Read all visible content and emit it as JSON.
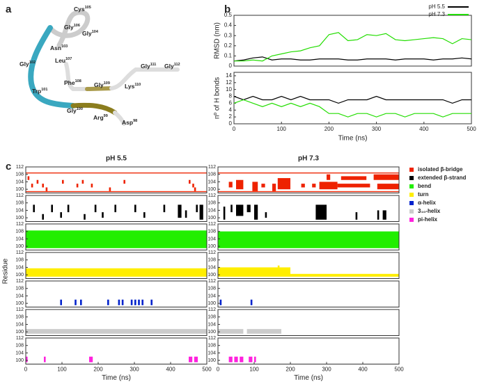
{
  "panel_labels": [
    "a",
    "b",
    "c"
  ],
  "structure": {
    "labels": [
      {
        "name": "Cys",
        "number": 105
      },
      {
        "name": "Gly",
        "number": 106
      },
      {
        "name": "Gly",
        "number": 104
      },
      {
        "name": "Asn",
        "number": 103
      },
      {
        "name": "Leu",
        "number": 107
      },
      {
        "name": "Gly",
        "number": 102
      },
      {
        "name": "Trp",
        "number": 101
      },
      {
        "name": "Phe",
        "number": 108
      },
      {
        "name": "Gly",
        "number": 109
      },
      {
        "name": "Lys",
        "number": 110
      },
      {
        "name": "Gly",
        "number": 111
      },
      {
        "name": "Gly",
        "number": 112
      },
      {
        "name": "Gly",
        "number": 100
      },
      {
        "name": "Arg",
        "number": 99
      },
      {
        "name": "Asp",
        "number": 98
      }
    ]
  },
  "chart_data": [
    {
      "type": "line",
      "ylabel": "RMSD (nm)",
      "legend": "upper right",
      "x": [
        0,
        20,
        40,
        60,
        80,
        100,
        120,
        140,
        160,
        180,
        200,
        220,
        240,
        260,
        280,
        300,
        320,
        340,
        360,
        380,
        400,
        420,
        440,
        460,
        480,
        500
      ],
      "xlim": [
        0,
        500
      ],
      "ylim": [
        0,
        0.5
      ],
      "yticks": [
        0,
        0.1,
        0.2,
        0.3,
        0.4,
        0.5
      ],
      "series": [
        {
          "name": "pH 5.5",
          "color": "#000000",
          "values": [
            0.05,
            0.06,
            0.08,
            0.09,
            0.06,
            0.07,
            0.07,
            0.06,
            0.06,
            0.07,
            0.07,
            0.07,
            0.06,
            0.06,
            0.07,
            0.07,
            0.07,
            0.06,
            0.07,
            0.07,
            0.07,
            0.06,
            0.07,
            0.07,
            0.08,
            0.07
          ]
        },
        {
          "name": "pH 7.3",
          "color": "#22dd00",
          "values": [
            0.05,
            0.05,
            0.06,
            0.05,
            0.1,
            0.12,
            0.14,
            0.15,
            0.18,
            0.2,
            0.31,
            0.33,
            0.25,
            0.26,
            0.31,
            0.3,
            0.32,
            0.26,
            0.25,
            0.26,
            0.27,
            0.28,
            0.27,
            0.22,
            0.27,
            0.26
          ]
        }
      ]
    },
    {
      "type": "line",
      "ylabel": "nº of H bonds",
      "xlabel": "Time (ns)",
      "x": [
        0,
        20,
        40,
        60,
        80,
        100,
        120,
        140,
        160,
        180,
        200,
        220,
        240,
        260,
        280,
        300,
        320,
        340,
        360,
        380,
        400,
        420,
        440,
        460,
        480,
        500
      ],
      "xlim": [
        0,
        500
      ],
      "xticks": [
        0,
        100,
        200,
        300,
        400,
        500
      ],
      "ylim": [
        0,
        15
      ],
      "yticks": [
        0,
        2,
        4,
        6,
        8,
        10,
        12,
        14
      ],
      "series": [
        {
          "color": "#000000",
          "values": [
            8,
            7,
            8,
            7,
            7,
            8,
            7,
            8,
            7,
            7,
            7,
            6,
            7,
            7,
            7,
            8,
            7,
            7,
            7,
            7,
            7,
            7,
            7,
            6,
            7,
            7
          ]
        },
        {
          "color": "#22dd00",
          "values": [
            6,
            7,
            6,
            5,
            6,
            5,
            6,
            5,
            6,
            5,
            3,
            3,
            2,
            3,
            3,
            2,
            3,
            3,
            2,
            3,
            3,
            3,
            2,
            3,
            3,
            3
          ]
        }
      ]
    },
    {
      "type": "timeline",
      "ylabel": "Residue",
      "xlabel": "Time (ns)",
      "xlim": [
        0,
        500
      ],
      "xticks": [
        0,
        100,
        200,
        300,
        400,
        500
      ],
      "ylim": [
        98,
        112
      ],
      "yticks": [
        100,
        104,
        108,
        112
      ],
      "states": [
        {
          "name": "isolated β-bridge",
          "color": "#ee2200"
        },
        {
          "name": "extended β-strand",
          "color": "#000000"
        },
        {
          "name": "bend",
          "color": "#22ee00"
        },
        {
          "name": "turn",
          "color": "#ffee00"
        },
        {
          "name": "α-helix",
          "color": "#0022cc"
        },
        {
          "name": "3₁₀-helix",
          "color": "#cccccc"
        },
        {
          "name": "pi-helix",
          "color": "#ff22dd"
        }
      ],
      "columns": [
        {
          "title": "pH 5.5",
          "rows": [
            [
              [
                0,
                500,
                108.5,
                109
              ],
              [
                0,
                500,
                98.5,
                99
              ],
              [
                5,
                10,
                105,
                107
              ],
              [
                15,
                20,
                101,
                103
              ],
              [
                30,
                35,
                103,
                105
              ],
              [
                45,
                50,
                101,
                103
              ],
              [
                55,
                60,
                99,
                101
              ],
              [
                100,
                105,
                103,
                105
              ],
              [
                140,
                145,
                101,
                103
              ],
              [
                155,
                160,
                103,
                105
              ],
              [
                180,
                185,
                101,
                103
              ],
              [
                230,
                235,
                99,
                101
              ],
              [
                270,
                275,
                103,
                105
              ],
              [
                450,
                455,
                103,
                105
              ],
              [
                460,
                465,
                101,
                103
              ],
              [
                465,
                470,
                99,
                101
              ]
            ],
            [
              [
                20,
                25,
                103,
                107
              ],
              [
                45,
                50,
                99,
                102
              ],
              [
                70,
                75,
                103,
                107
              ],
              [
                95,
                100,
                100,
                103
              ],
              [
                115,
                120,
                103,
                107
              ],
              [
                160,
                165,
                99,
                102
              ],
              [
                190,
                195,
                103,
                107
              ],
              [
                210,
                215,
                100,
                103
              ],
              [
                245,
                250,
                103,
                107
              ],
              [
                300,
                305,
                103,
                107
              ],
              [
                325,
                330,
                100,
                103
              ],
              [
                380,
                385,
                103,
                107
              ],
              [
                420,
                430,
                100,
                107
              ],
              [
                440,
                445,
                100,
                104
              ],
              [
                470,
                475,
                103,
                107
              ],
              [
                480,
                490,
                99,
                107
              ]
            ],
            [
              [
                0,
                500,
                99,
                108.5
              ]
            ],
            [
              [
                0,
                500,
                99,
                103.5
              ]
            ],
            [
              [
                95,
                100,
                99,
                102
              ],
              [
                135,
                140,
                99,
                102
              ],
              [
                150,
                155,
                99,
                102
              ],
              [
                225,
                230,
                99,
                102
              ],
              [
                255,
                260,
                99,
                102
              ],
              [
                265,
                270,
                99,
                102
              ],
              [
                290,
                295,
                99,
                102
              ],
              [
                300,
                305,
                99,
                102
              ],
              [
                310,
                315,
                99,
                102
              ],
              [
                320,
                325,
                99,
                102
              ],
              [
                345,
                350,
                99,
                102
              ]
            ],
            [
              [
                0,
                500,
                99,
                101.5
              ]
            ],
            [
              [
                0,
                5,
                99,
                102
              ],
              [
                50,
                55,
                99,
                102
              ],
              [
                175,
                185,
                99,
                102
              ],
              [
                450,
                460,
                99,
                102
              ],
              [
                465,
                475,
                99,
                102
              ]
            ]
          ]
        },
        {
          "title": "pH 7.3",
          "rows": [
            [
              [
                0,
                500,
                108.5,
                109
              ],
              [
                0,
                500,
                98.5,
                99
              ],
              [
                30,
                40,
                101,
                104
              ],
              [
                50,
                70,
                100,
                105
              ],
              [
                95,
                110,
                99,
                104
              ],
              [
                120,
                130,
                101,
                103
              ],
              [
                150,
                160,
                99,
                103
              ],
              [
                165,
                200,
                100,
                106
              ],
              [
                230,
                240,
                101,
                103
              ],
              [
                260,
                270,
                101,
                103
              ],
              [
                280,
                330,
                100,
                104
              ],
              [
                300,
                310,
                105,
                108
              ],
              [
                330,
                420,
                101,
                103
              ],
              [
                340,
                410,
                105,
                107
              ],
              [
                430,
                500,
                105,
                108
              ],
              [
                440,
                500,
                100,
                103
              ]
            ],
            [
              [
                15,
                20,
                99,
                106
              ],
              [
                35,
                40,
                103,
                107
              ],
              [
                50,
                70,
                101,
                107
              ],
              [
                80,
                90,
                103,
                107
              ],
              [
                100,
                110,
                99,
                107
              ],
              [
                130,
                135,
                100,
                103
              ],
              [
                270,
                300,
                99,
                107
              ],
              [
                380,
                385,
                99,
                103
              ],
              [
                440,
                445,
                99,
                104
              ],
              [
                455,
                465,
                99,
                104
              ]
            ],
            [
              [
                0,
                500,
                99,
                108
              ]
            ],
            [
              [
                0,
                200,
                99,
                104
              ],
              [
                200,
                500,
                99,
                100.5
              ],
              [
                165,
                170,
                104,
                105
              ]
            ],
            [
              [
                5,
                10,
                99,
                102
              ],
              [
                90,
                95,
                99,
                102
              ]
            ],
            [
              [
                0,
                70,
                99,
                101.5
              ],
              [
                80,
                175,
                99,
                101.5
              ]
            ],
            [
              [
                30,
                40,
                99,
                102
              ],
              [
                45,
                55,
                99,
                102
              ],
              [
                60,
                70,
                99,
                102
              ],
              [
                85,
                95,
                99,
                102
              ],
              [
                100,
                105,
                99,
                102
              ]
            ]
          ]
        }
      ]
    }
  ]
}
